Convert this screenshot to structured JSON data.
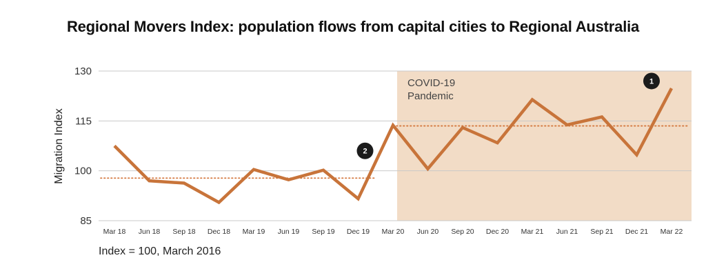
{
  "page": {
    "title": "Regional Movers Index: population flows from capital cities to Regional Australia",
    "note": "Index = 100, March 2016"
  },
  "chart_data": {
    "type": "line",
    "title": "Regional Movers Index: population flows from capital cities to Regional Australia",
    "xlabel": "",
    "ylabel": "Migration Index",
    "ylim": [
      85,
      130
    ],
    "yticks": [
      85,
      100,
      115,
      130
    ],
    "grid": true,
    "categories": [
      "Mar 18",
      "Jun 18",
      "Sep 18",
      "Dec 18",
      "Mar 19",
      "Jun 19",
      "Sep 19",
      "Dec 19",
      "Mar 20",
      "Jun 20",
      "Sep 20",
      "Dec 20",
      "Mar 21",
      "Jun 21",
      "Sep 21",
      "Dec 21",
      "Mar 22"
    ],
    "series": [
      {
        "values": [
          107.5,
          97,
          96.3,
          90.5,
          100.4,
          97.3,
          100.2,
          91.6,
          113.7,
          100.6,
          113,
          108.4,
          121.4,
          113.8,
          116.2,
          104.8,
          124.8
        ],
        "color": "#c8743a"
      }
    ],
    "shaded_region": {
      "from": "Mar 20",
      "to": "Mar 22",
      "label_lines": [
        "COVID-19",
        "Pandemic"
      ],
      "color": "#f2dcc6"
    },
    "reference_lines": [
      {
        "from": "Mar 18",
        "to": "Dec 19",
        "value": 97.8,
        "color": "#d4783e"
      },
      {
        "from": "Mar 20",
        "to": "Mar 22",
        "value": 113.5,
        "color": "#d4783e"
      }
    ],
    "markers": [
      {
        "label": "1",
        "x": "Mar 22",
        "y": 127
      },
      {
        "label": "2",
        "x": "Dec 19",
        "y": 106
      }
    ]
  }
}
